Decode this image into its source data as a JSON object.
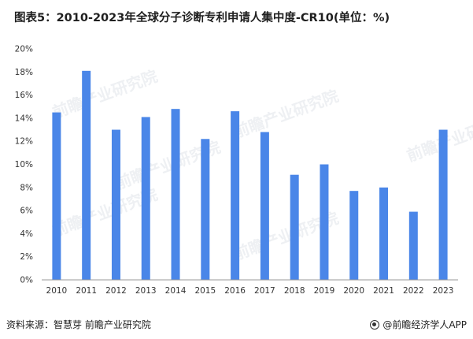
{
  "title": "图表5：2010-2023年全球分子诊断专利申请人集中度-CR10(单位：%)",
  "footer": {
    "source": "资料来源：智慧芽 前瞻产业研究院",
    "brand": "@前瞻经济学人APP"
  },
  "watermark": {
    "text": "前瞻产业研究院",
    "logo_icon": "qianzhan-logo-icon"
  },
  "colors": {
    "bar": "#4a86e8",
    "axis": "#999999"
  },
  "chart_data": {
    "type": "bar",
    "categories": [
      "2010",
      "2011",
      "2012",
      "2013",
      "2014",
      "2015",
      "2016",
      "2017",
      "2018",
      "2019",
      "2020",
      "2021",
      "2022",
      "2023"
    ],
    "values": [
      14.5,
      18.1,
      13.0,
      14.1,
      14.8,
      12.2,
      14.6,
      12.8,
      9.1,
      10.0,
      7.7,
      8.0,
      5.9,
      13.0
    ],
    "yticks": [
      "0%",
      "2%",
      "4%",
      "6%",
      "8%",
      "10%",
      "12%",
      "14%",
      "16%",
      "18%",
      "20%"
    ],
    "ylim": [
      0,
      20
    ],
    "xlabel": "",
    "ylabel": "",
    "grid": false,
    "legend": "none"
  }
}
